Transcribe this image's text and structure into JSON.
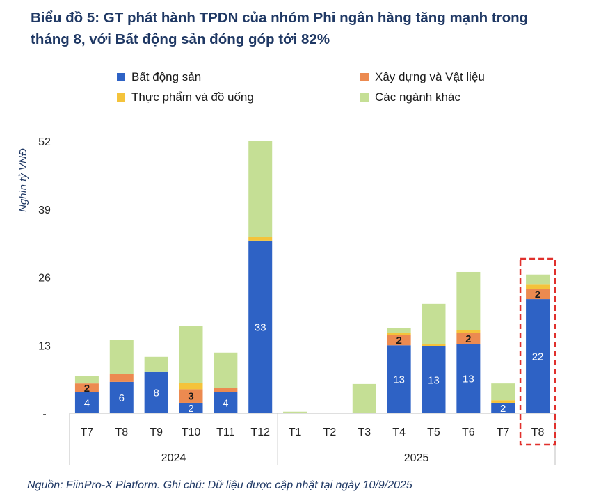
{
  "title_line1": "Biểu đồ 5: GT phát hành TPDN của nhóm Phi ngân hàng tăng mạnh trong",
  "title_line2": "tháng 8, với Bất động sản đóng góp tới 82%",
  "ylabel": "Nghìn tỷ VNĐ",
  "source": "Nguồn: FiinPro-X Platform. Ghi chú: Dữ liệu được cập nhật tại ngày 10/9/2025",
  "colors": {
    "bds": "#2e62c5",
    "xd": "#ec8a50",
    "tp": "#f4c33b",
    "khac": "#c5df95",
    "highlight": "#e0302c",
    "axis": "#bfbfbf",
    "text": "#222222"
  },
  "chart_data": {
    "type": "bar",
    "stacked": true,
    "title": "GT phát hành TPDN của nhóm Phi ngân hàng",
    "ylabel": "Nghìn tỷ VNĐ",
    "ylim": [
      0,
      52
    ],
    "yticks": [
      "-",
      "13",
      "26",
      "39",
      "52"
    ],
    "ytick_values": [
      0,
      13,
      26,
      39,
      52
    ],
    "categories": [
      "T7",
      "T8",
      "T9",
      "T10",
      "T11",
      "T12",
      "T1",
      "T2",
      "T3",
      "T4",
      "T5",
      "T6",
      "T7",
      "T8"
    ],
    "groups": [
      {
        "label": "2024",
        "start": 0,
        "count": 6
      },
      {
        "label": "2025",
        "start": 6,
        "count": 8
      }
    ],
    "highlight_index": 13,
    "series": [
      {
        "name": "Bất động sản",
        "key": "bds",
        "values": [
          4.0,
          6.0,
          8.0,
          2.0,
          4.0,
          33.0,
          0.0,
          0.0,
          0.0,
          13.0,
          12.8,
          13.3,
          2.0,
          21.8
        ],
        "labels": [
          "4",
          "6",
          "8",
          "2",
          "4",
          "33",
          "",
          "",
          "",
          "13",
          "13",
          "13",
          "2",
          "22"
        ]
      },
      {
        "name": "Xây dựng và Vật liệu",
        "key": "xd",
        "values": [
          1.7,
          1.5,
          0.0,
          2.6,
          0.8,
          0.0,
          0.0,
          0.0,
          0.0,
          2.0,
          0.0,
          2.0,
          0.0,
          2.0
        ],
        "labels": [
          "2",
          "",
          "",
          "3",
          "",
          "",
          "",
          "",
          "",
          "2",
          "",
          "2",
          "",
          "2"
        ]
      },
      {
        "name": "Thực phẩm và đồ uống",
        "key": "tp",
        "values": [
          0.0,
          0.0,
          0.0,
          1.2,
          0.0,
          0.7,
          0.0,
          0.0,
          0.0,
          0.3,
          0.4,
          0.6,
          0.5,
          0.9
        ],
        "labels": [
          "",
          "",
          "",
          "",
          "",
          "",
          "",
          "",
          "",
          "",
          "",
          "",
          "",
          ""
        ]
      },
      {
        "name": "Các ngành khác",
        "key": "khac",
        "values": [
          1.4,
          6.5,
          2.8,
          10.9,
          6.8,
          18.3,
          0.3,
          0.0,
          5.6,
          1.0,
          7.7,
          11.1,
          3.2,
          1.8
        ],
        "labels": [
          "",
          "",
          "",
          "",
          "",
          "",
          "",
          "",
          "",
          "",
          "",
          "",
          "",
          ""
        ]
      }
    ],
    "legend": [
      {
        "name": "Bất động sản",
        "key": "bds",
        "position": "row1-left"
      },
      {
        "name": "Xây dựng và Vật liệu",
        "key": "xd",
        "position": "row1-right"
      },
      {
        "name": "Thực phẩm và đồ uống",
        "key": "tp",
        "position": "row2-left"
      },
      {
        "name": "Các ngành khác",
        "key": "khac",
        "position": "row2-right"
      }
    ]
  }
}
